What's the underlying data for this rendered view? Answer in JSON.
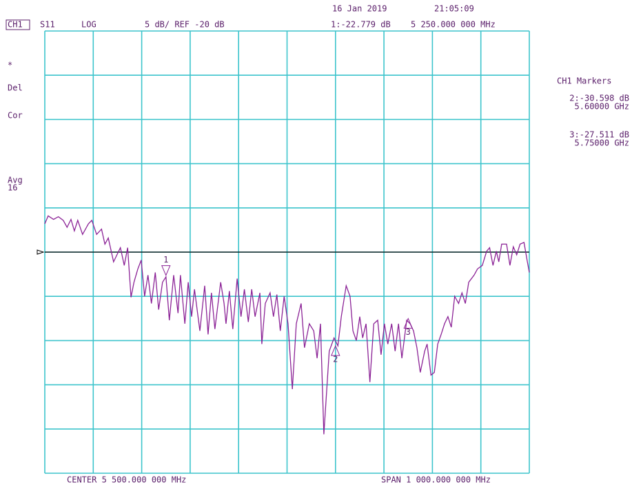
{
  "header": {
    "date": "16 Jan 2019",
    "time": "21:05:09",
    "channel": "CH1",
    "parameter": "S11",
    "format": "LOG",
    "scale": "5 dB/ REF -20 dB",
    "active_marker": "1:-22.779 dB",
    "active_marker_freq": "5 250.000 000 MHz"
  },
  "status": [
    "*",
    "Del",
    "Cor",
    "Avg",
    "16"
  ],
  "marker_panel": {
    "title": "CH1 Markers",
    "entries": [
      {
        "value": "2:-30.598 dB",
        "freq": "5.60000 GHz"
      },
      {
        "value": "3:-27.511 dB",
        "freq": "5.75000 GHz"
      }
    ]
  },
  "footer": {
    "center": "CENTER 5 500.000 000 MHz",
    "span": "SPAN 1 000.000 000 MHz"
  },
  "chart_data": {
    "type": "line",
    "color": "#8b2296",
    "grid": true,
    "xlim": [
      5,
      6
    ],
    "ylim": [
      -45,
      5
    ],
    "xticks": [
      5,
      5.1,
      5.2,
      5.3,
      5.4,
      5.5,
      5.6,
      5.7,
      5.8,
      5.9,
      6
    ],
    "yticks": [
      -45,
      -40,
      -35,
      -30,
      -25,
      -20,
      -15,
      -10,
      -5,
      0,
      5
    ],
    "reference": -20,
    "x": [
      5.0,
      5.007,
      5.018,
      5.028,
      5.038,
      5.046,
      5.054,
      5.061,
      5.068,
      5.078,
      5.09,
      5.097,
      5.107,
      5.117,
      5.124,
      5.131,
      5.142,
      5.149,
      5.156,
      5.164,
      5.171,
      5.178,
      5.184,
      5.192,
      5.199,
      5.206,
      5.213,
      5.22,
      5.228,
      5.235,
      5.243,
      5.25,
      5.257,
      5.266,
      5.275,
      5.28,
      5.289,
      5.296,
      5.303,
      5.309,
      5.32,
      5.33,
      5.337,
      5.344,
      5.351,
      5.363,
      5.37,
      5.374,
      5.381,
      5.388,
      5.397,
      5.405,
      5.412,
      5.42,
      5.427,
      5.434,
      5.444,
      5.448,
      5.455,
      5.465,
      5.472,
      5.479,
      5.486,
      5.494,
      5.502,
      5.511,
      5.519,
      5.529,
      5.536,
      5.546,
      5.555,
      5.562,
      5.569,
      5.576,
      5.587,
      5.597,
      5.605,
      5.612,
      5.622,
      5.63,
      5.636,
      5.643,
      5.65,
      5.656,
      5.663,
      5.671,
      5.679,
      5.687,
      5.694,
      5.701,
      5.708,
      5.716,
      5.723,
      5.73,
      5.737,
      5.747,
      5.754,
      5.761,
      5.768,
      5.775,
      5.784,
      5.789,
      5.797,
      5.804,
      5.811,
      5.818,
      5.825,
      5.832,
      5.839,
      5.846,
      5.854,
      5.861,
      5.868,
      5.875,
      5.886,
      5.893,
      5.903,
      5.912,
      5.918,
      5.925,
      5.932,
      5.937,
      5.943,
      5.953,
      5.96,
      5.967,
      5.974,
      5.981,
      5.989,
      5.996,
      6.0
    ],
    "values": [
      -16.8,
      -15.9,
      -16.3,
      -16.0,
      -16.4,
      -17.2,
      -16.3,
      -17.6,
      -16.4,
      -18.0,
      -16.8,
      -16.4,
      -18.0,
      -17.4,
      -19.1,
      -18.4,
      -21.1,
      -20.3,
      -19.5,
      -21.5,
      -19.5,
      -25.1,
      -23.4,
      -21.9,
      -20.9,
      -25.0,
      -22.6,
      -25.8,
      -22.3,
      -26.5,
      -23.4,
      -22.8,
      -27.7,
      -22.6,
      -26.9,
      -22.6,
      -28.1,
      -23.4,
      -27.3,
      -24.2,
      -28.9,
      -23.8,
      -29.3,
      -24.6,
      -28.7,
      -23.4,
      -25.8,
      -28.1,
      -24.4,
      -28.7,
      -23.0,
      -27.3,
      -24.2,
      -27.9,
      -24.2,
      -27.3,
      -24.6,
      -30.4,
      -25.8,
      -24.6,
      -27.3,
      -24.8,
      -28.9,
      -25.0,
      -28.1,
      -35.5,
      -28.1,
      -25.8,
      -30.8,
      -28.1,
      -28.9,
      -32.0,
      -28.1,
      -40.6,
      -31.2,
      -29.7,
      -30.6,
      -27.3,
      -23.8,
      -25.0,
      -28.9,
      -30.0,
      -27.3,
      -29.7,
      -28.1,
      -34.7,
      -28.1,
      -27.7,
      -31.6,
      -28.1,
      -30.4,
      -28.1,
      -31.2,
      -28.1,
      -32.0,
      -27.7,
      -28.1,
      -28.9,
      -30.8,
      -33.6,
      -31.2,
      -30.4,
      -33.9,
      -33.6,
      -30.4,
      -29.3,
      -28.1,
      -27.3,
      -28.5,
      -25.0,
      -25.8,
      -24.6,
      -25.8,
      -23.4,
      -22.6,
      -21.9,
      -21.5,
      -19.9,
      -19.5,
      -21.5,
      -19.9,
      -21.1,
      -19.1,
      -19.1,
      -21.5,
      -19.4,
      -20.3,
      -19.1,
      -18.9,
      -21.1,
      -22.3
    ],
    "markers": [
      {
        "label": "1",
        "x": 5.25,
        "value": -22.779
      },
      {
        "label": "2",
        "x": 5.6,
        "value": -30.598
      },
      {
        "label": "3",
        "x": 5.75,
        "value": -27.511
      }
    ]
  }
}
